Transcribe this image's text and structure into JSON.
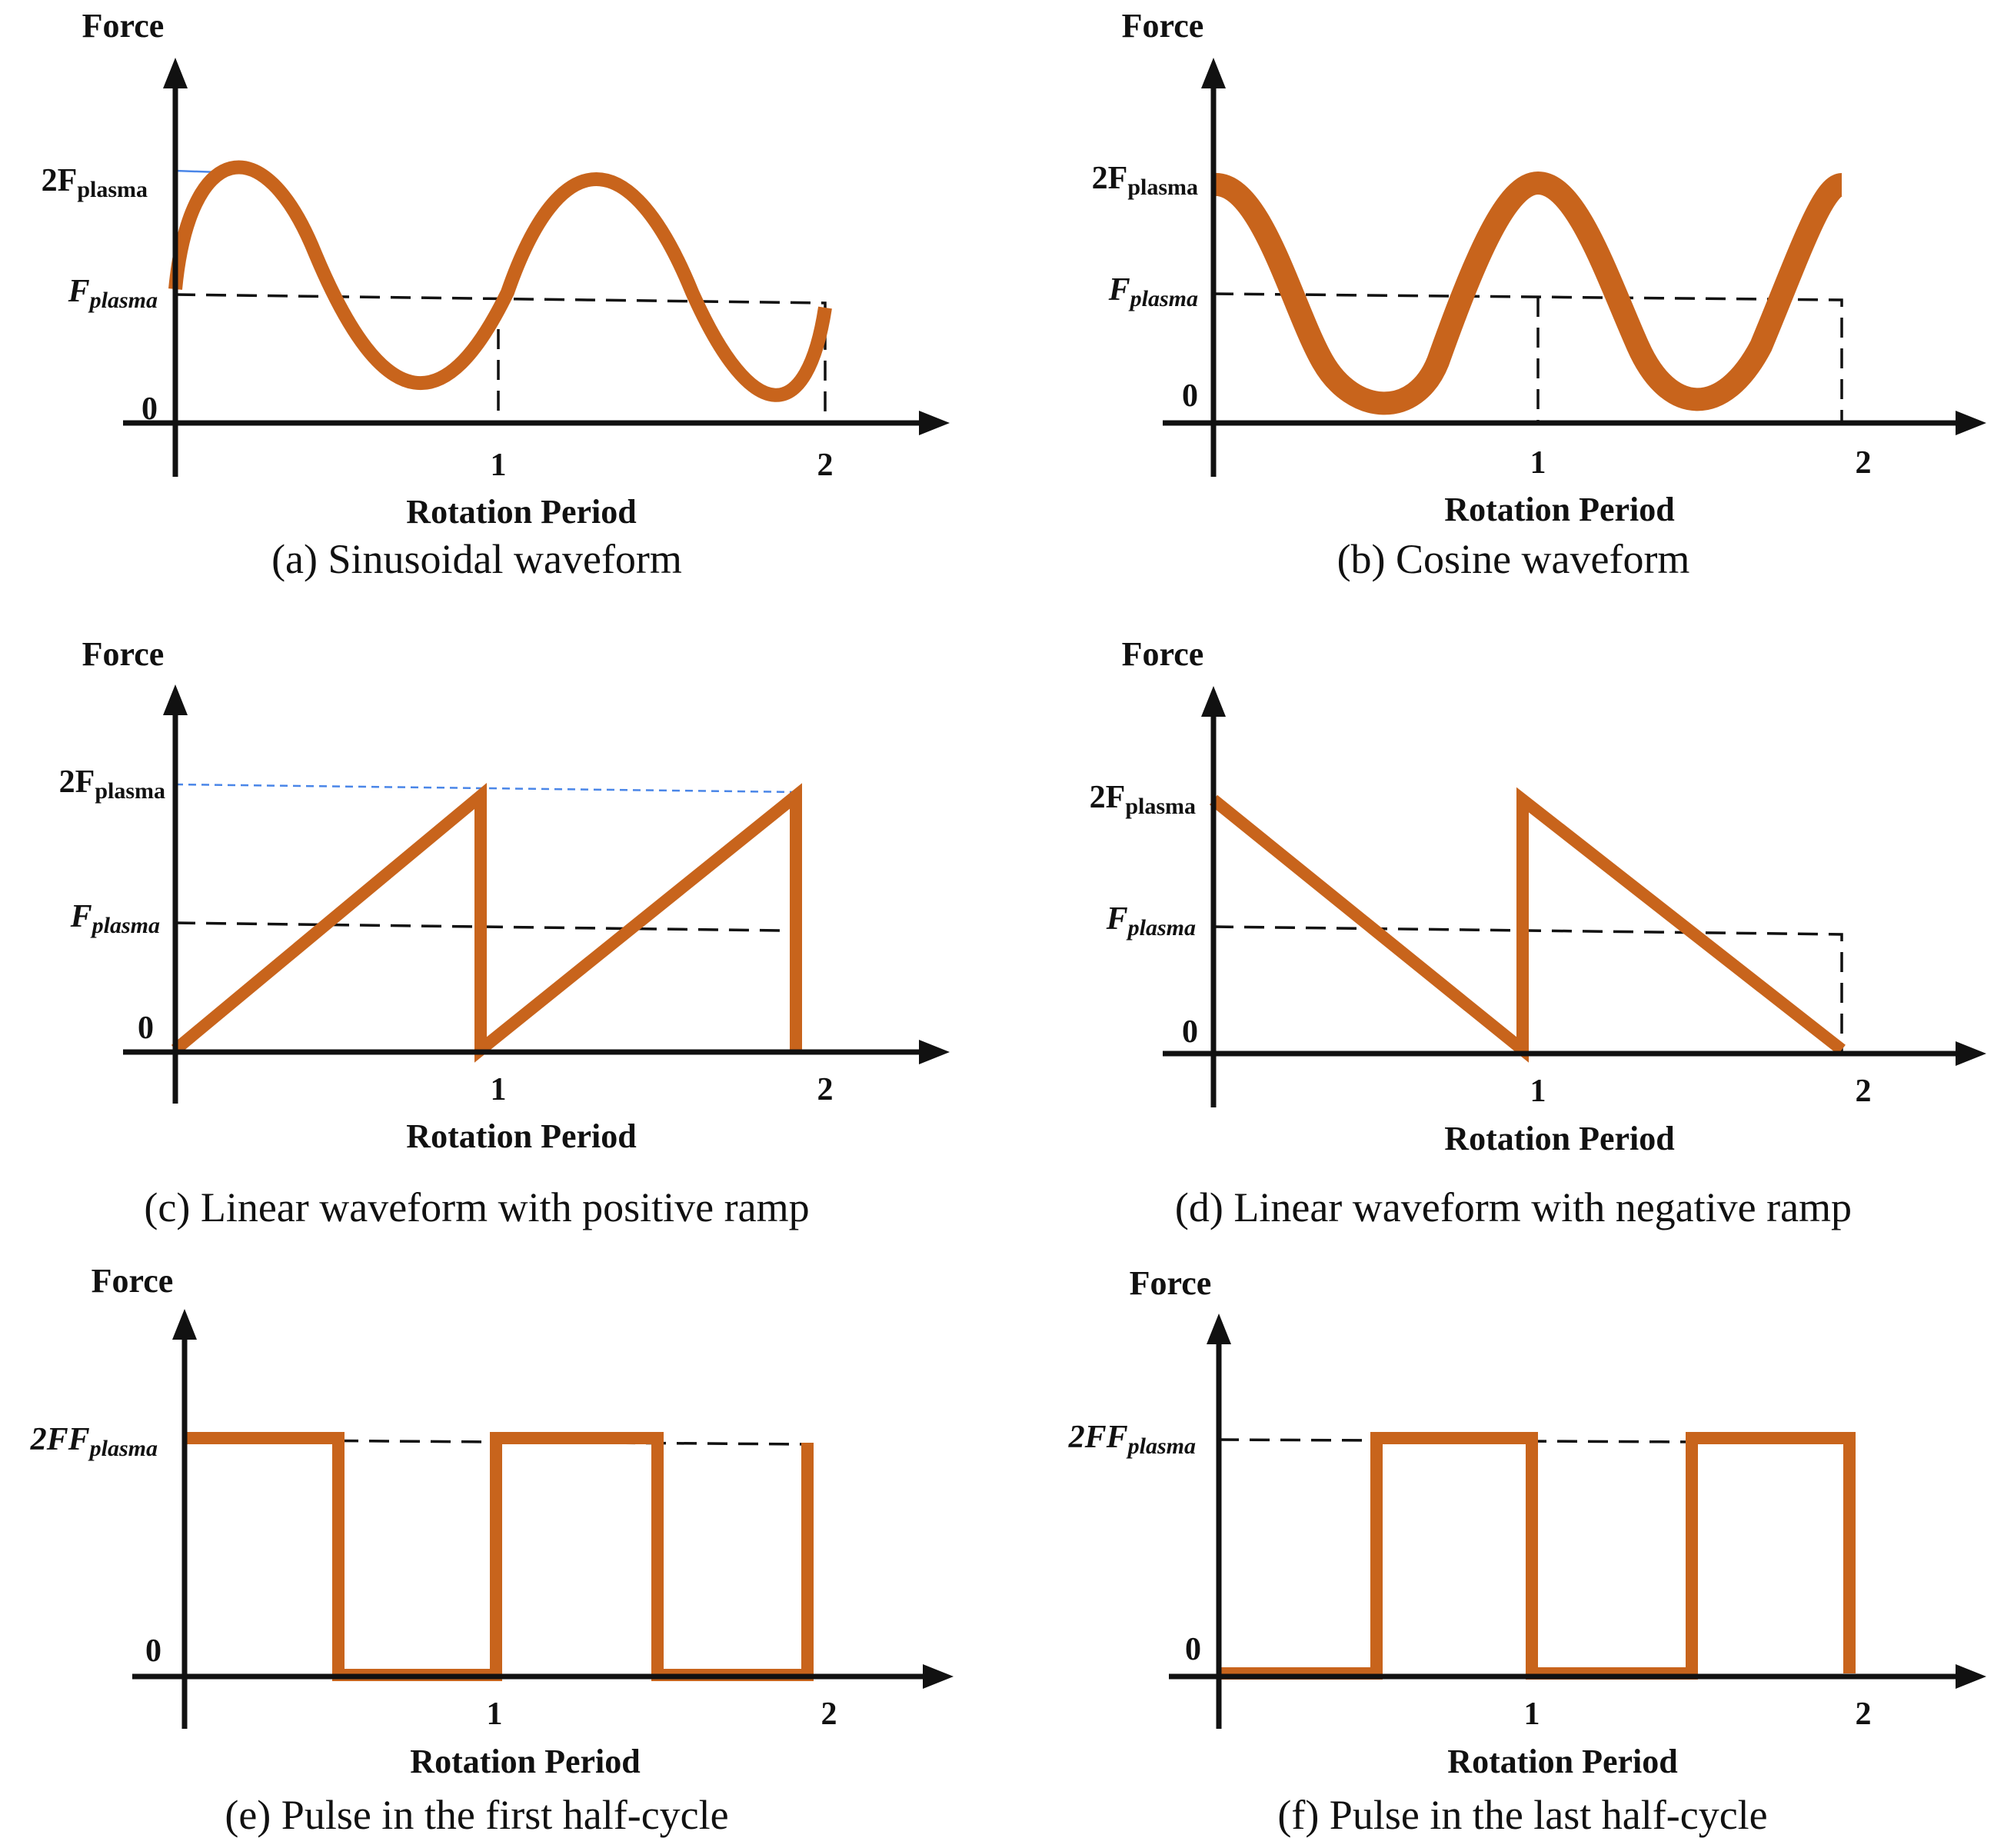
{
  "wave_color": "#c8641c",
  "axis_color": "#111111",
  "labels": {
    "force": "Force",
    "level_high_2": "2F",
    "level_high_sub": "plasma",
    "level_mid_f": "F",
    "level_mid_sub": "plasma",
    "zero": "0",
    "tick_1": "1",
    "tick_2": "2",
    "x_axis": "Rotation Period"
  },
  "panels": [
    {
      "id": "a",
      "caption": "(a) Sinusoidal waveform",
      "waveform": "sine",
      "high_label_style": "upright"
    },
    {
      "id": "b",
      "caption": "(b) Cosine waveform",
      "waveform": "cosine",
      "high_label_style": "upright"
    },
    {
      "id": "c",
      "caption": "(c) Linear waveform with positive ramp",
      "waveform": "ramp-up",
      "high_label_style": "upright"
    },
    {
      "id": "d",
      "caption": "(d) Linear waveform with negative ramp",
      "waveform": "ramp-down",
      "high_label_style": "upright"
    },
    {
      "id": "e",
      "caption": "(e) Pulse in the first half-cycle",
      "waveform": "pulse-first-half",
      "high_label_style": "italic"
    },
    {
      "id": "f",
      "caption": "(f) Pulse in the last half-cycle",
      "waveform": "pulse-last-half",
      "high_label_style": "italic"
    }
  ],
  "chart_data": [
    {
      "type": "line",
      "panel": "a",
      "x": [
        0,
        0.25,
        0.5,
        0.75,
        1.0,
        1.25,
        1.5,
        1.75,
        2.0
      ],
      "y_in_Fplasma": [
        1,
        2,
        1,
        0,
        1,
        2,
        1,
        0,
        1
      ],
      "ylabel": "Force",
      "xlabel": "Rotation Period",
      "x_ticks": [
        "1",
        "2"
      ]
    },
    {
      "type": "line",
      "panel": "b",
      "x": [
        0,
        0.25,
        0.5,
        0.75,
        1.0,
        1.25,
        1.5,
        1.75,
        2.0
      ],
      "y_in_Fplasma": [
        2,
        1,
        0,
        1,
        2,
        1,
        0,
        1,
        2
      ],
      "ylabel": "Force",
      "xlabel": "Rotation Period",
      "x_ticks": [
        "1",
        "2"
      ]
    },
    {
      "type": "line",
      "panel": "c",
      "x": [
        0,
        1,
        1,
        2,
        2
      ],
      "y_in_Fplasma": [
        0,
        2,
        0,
        2,
        0
      ],
      "ylabel": "Force",
      "xlabel": "Rotation Period",
      "x_ticks": [
        "1",
        "2"
      ]
    },
    {
      "type": "line",
      "panel": "d",
      "x": [
        0,
        1,
        1,
        2
      ],
      "y_in_Fplasma": [
        2,
        0,
        2,
        0
      ],
      "ylabel": "Force",
      "xlabel": "Rotation Period",
      "x_ticks": [
        "1",
        "2"
      ]
    },
    {
      "type": "line",
      "panel": "e",
      "x": [
        0,
        0.5,
        0.5,
        1,
        1,
        1.5,
        1.5,
        2,
        2
      ],
      "y_in_Fplasma": [
        2,
        2,
        0,
        0,
        2,
        2,
        0,
        0,
        2
      ],
      "ylabel": "Force",
      "xlabel": "Rotation Period",
      "x_ticks": [
        "1",
        "2"
      ]
    },
    {
      "type": "line",
      "panel": "f",
      "x": [
        0,
        0.5,
        0.5,
        1,
        1,
        1.5,
        1.5,
        2,
        2
      ],
      "y_in_Fplasma": [
        0,
        0,
        2,
        2,
        0,
        0,
        2,
        2,
        0
      ],
      "ylabel": "Force",
      "xlabel": "Rotation Period",
      "x_ticks": [
        "1",
        "2"
      ]
    }
  ]
}
